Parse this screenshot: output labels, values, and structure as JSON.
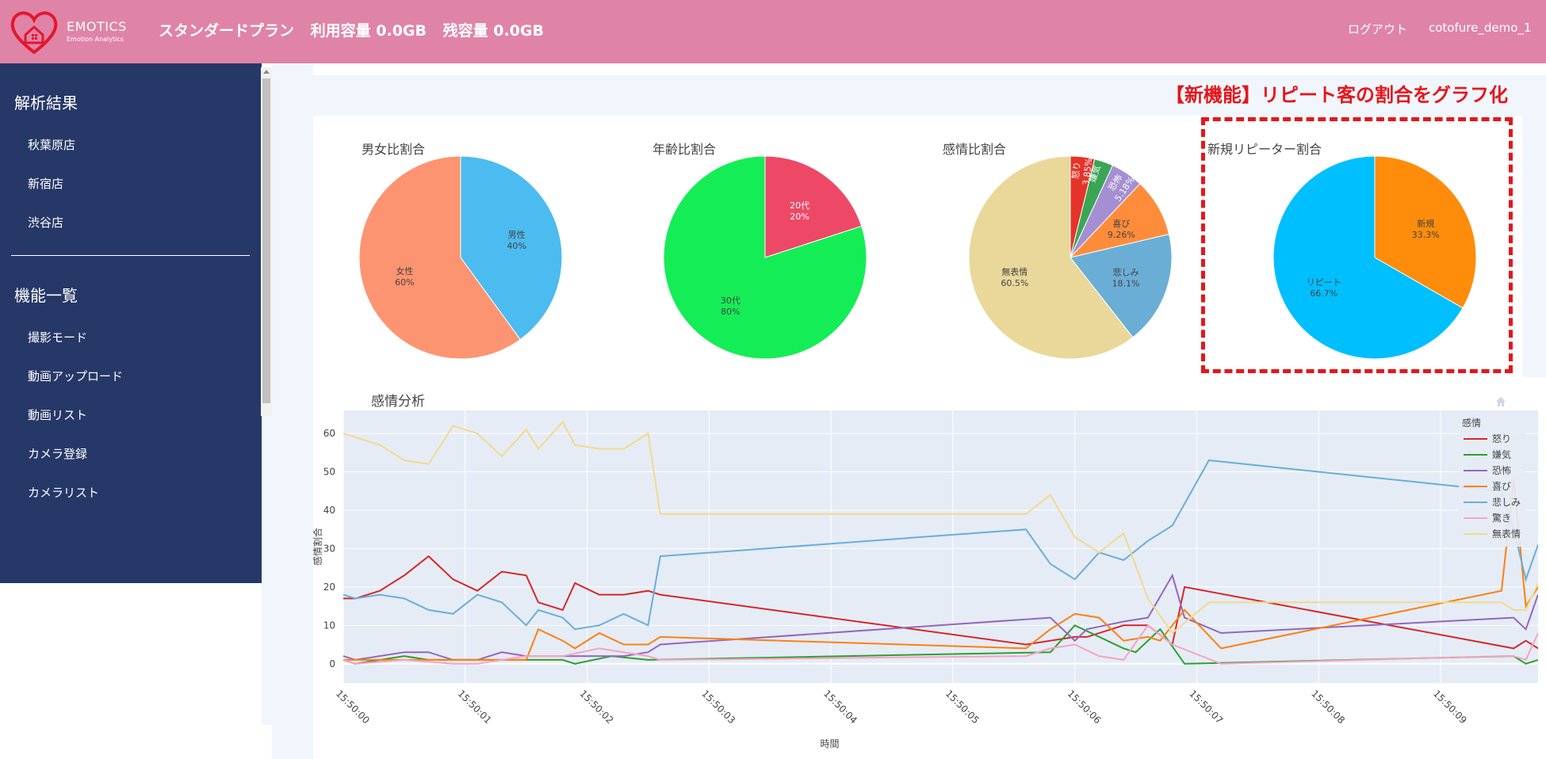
{
  "header": {
    "logo_name": "EMOTICS",
    "logo_sub": "Emotion Analytics",
    "plan_label": "スタンダードプラン",
    "usage_label": "利用容量 0.0GB",
    "remaining_label": "残容量 0.0GB",
    "logout_label": "ログアウト",
    "user_name": "cotofure_demo_1"
  },
  "sidebar": {
    "results_heading": "解析結果",
    "stores": [
      "秋葉原店",
      "新宿店",
      "渋谷店"
    ],
    "features_heading": "機能一覧",
    "features": [
      "撮影モード",
      "動画アップロード",
      "動画リスト",
      "カメラ登録",
      "カメラリスト"
    ]
  },
  "feature_banner": "【新機能】リピート客の割合をグラフ化",
  "pies": [
    {
      "title": "男女比割合",
      "slices": [
        {
          "label": "男性",
          "percent": "40%",
          "value": 40,
          "color": "#4cbbef"
        },
        {
          "label": "女性",
          "percent": "60%",
          "value": 60,
          "color": "#fd9471"
        }
      ]
    },
    {
      "title": "年齢比割合",
      "slices": [
        {
          "label": "20代",
          "percent": "20%",
          "value": 20,
          "color": "#ee4867"
        },
        {
          "label": "30代",
          "percent": "80%",
          "value": 80,
          "color": "#15ed57"
        }
      ]
    },
    {
      "title": "感情比割合",
      "slices": [
        {
          "label": "怒り",
          "percent": "3.85%",
          "value": 3.85,
          "color": "#e6332a"
        },
        {
          "label": "嫌気",
          "percent": "",
          "value": 3.0,
          "color": "#3aa655"
        },
        {
          "label": "恐怖",
          "percent": "5.18%",
          "value": 5.18,
          "color": "#a48fd2"
        },
        {
          "label": "喜び",
          "percent": "9.26%",
          "value": 9.26,
          "color": "#ff8c3b"
        },
        {
          "label": "悲しみ",
          "percent": "18.1%",
          "value": 18.1,
          "color": "#6aaed6"
        },
        {
          "label": "無表情",
          "percent": "60.5%",
          "value": 60.5,
          "color": "#ead89a"
        }
      ]
    },
    {
      "title": "新規リピーター割合",
      "slices": [
        {
          "label": "新規",
          "percent": "33.3%",
          "value": 33.3,
          "color": "#ff8c0a"
        },
        {
          "label": "リピート",
          "percent": "66.7%",
          "value": 66.7,
          "color": "#00bfff"
        }
      ]
    }
  ],
  "chart_data": {
    "type": "line",
    "title": "感情分析",
    "xlabel": "時間",
    "ylabel": "感情割合",
    "ylim": [
      -5,
      66
    ],
    "xlim": [
      0,
      9.8
    ],
    "yticks": [
      0,
      10,
      20,
      30,
      40,
      50,
      60
    ],
    "xticks": [
      "15:50:00",
      "15:50:01",
      "15:50:02",
      "15:50:03",
      "15:50:04",
      "15:50:05",
      "15:50:06",
      "15:50:07",
      "15:50:08",
      "15:50:09"
    ],
    "legend_title": "感情",
    "legend_position": "top-right",
    "grid": true,
    "series": [
      {
        "name": "怒り",
        "color": "#d62728",
        "points": [
          [
            0,
            17
          ],
          [
            0.1,
            17
          ],
          [
            0.3,
            19
          ],
          [
            0.5,
            23
          ],
          [
            0.7,
            28
          ],
          [
            0.9,
            22
          ],
          [
            1.1,
            19
          ],
          [
            1.3,
            24
          ],
          [
            1.5,
            23
          ],
          [
            1.6,
            16
          ],
          [
            1.8,
            14
          ],
          [
            1.9,
            21
          ],
          [
            2.1,
            18
          ],
          [
            2.3,
            18
          ],
          [
            2.5,
            19
          ],
          [
            2.6,
            18
          ],
          [
            5.6,
            5
          ],
          [
            6.0,
            7
          ],
          [
            6.1,
            7
          ],
          [
            6.4,
            10
          ],
          [
            6.6,
            10
          ],
          [
            6.8,
            5
          ],
          [
            6.9,
            20
          ],
          [
            9.6,
            4
          ],
          [
            9.7,
            6
          ],
          [
            9.8,
            4
          ]
        ]
      },
      {
        "name": "嫌気",
        "color": "#2ca02c",
        "points": [
          [
            0,
            1
          ],
          [
            0.1,
            0
          ],
          [
            0.5,
            2
          ],
          [
            0.7,
            1
          ],
          [
            1.6,
            1
          ],
          [
            1.8,
            1
          ],
          [
            1.9,
            0
          ],
          [
            2.2,
            2
          ],
          [
            2.5,
            1
          ],
          [
            5.8,
            3
          ],
          [
            6.0,
            10
          ],
          [
            6.4,
            4
          ],
          [
            6.5,
            3
          ],
          [
            6.7,
            9
          ],
          [
            6.9,
            0
          ],
          [
            9.6,
            2
          ],
          [
            9.7,
            0
          ],
          [
            9.8,
            1
          ]
        ]
      },
      {
        "name": "恐怖",
        "color": "#9467bd",
        "points": [
          [
            0,
            2
          ],
          [
            0.1,
            1
          ],
          [
            0.5,
            3
          ],
          [
            0.7,
            3
          ],
          [
            0.9,
            1
          ],
          [
            1.1,
            1
          ],
          [
            1.3,
            3
          ],
          [
            1.5,
            2
          ],
          [
            2.3,
            2
          ],
          [
            2.5,
            3
          ],
          [
            2.6,
            5
          ],
          [
            5.8,
            12
          ],
          [
            6.0,
            6
          ],
          [
            6.1,
            9
          ],
          [
            6.4,
            11
          ],
          [
            6.6,
            12
          ],
          [
            6.8,
            23
          ],
          [
            6.9,
            12
          ],
          [
            7.2,
            8
          ],
          [
            9.6,
            12
          ],
          [
            9.7,
            9
          ],
          [
            9.8,
            18
          ]
        ]
      },
      {
        "name": "喜び",
        "color": "#ff7f0e",
        "points": [
          [
            0,
            1
          ],
          [
            1.5,
            1
          ],
          [
            1.6,
            9
          ],
          [
            1.8,
            6
          ],
          [
            1.9,
            4
          ],
          [
            2.1,
            8
          ],
          [
            2.3,
            5
          ],
          [
            2.5,
            5
          ],
          [
            2.6,
            7
          ],
          [
            5.6,
            4
          ],
          [
            5.8,
            9
          ],
          [
            6.0,
            13
          ],
          [
            6.2,
            12
          ],
          [
            6.4,
            6
          ],
          [
            6.6,
            7
          ],
          [
            6.7,
            6
          ],
          [
            6.9,
            14
          ],
          [
            7.2,
            4
          ],
          [
            9.5,
            19
          ],
          [
            9.6,
            48
          ],
          [
            9.7,
            15
          ],
          [
            9.8,
            20
          ]
        ]
      },
      {
        "name": "悲しみ",
        "color": "#6baed6",
        "points": [
          [
            0,
            18
          ],
          [
            0.1,
            17
          ],
          [
            0.3,
            18
          ],
          [
            0.5,
            17
          ],
          [
            0.7,
            14
          ],
          [
            0.9,
            13
          ],
          [
            1.1,
            18
          ],
          [
            1.3,
            16
          ],
          [
            1.5,
            10
          ],
          [
            1.6,
            14
          ],
          [
            1.8,
            12
          ],
          [
            1.9,
            9
          ],
          [
            2.1,
            10
          ],
          [
            2.3,
            13
          ],
          [
            2.5,
            10
          ],
          [
            2.6,
            28
          ],
          [
            5.6,
            35
          ],
          [
            5.8,
            26
          ],
          [
            6.0,
            22
          ],
          [
            6.2,
            29
          ],
          [
            6.4,
            27
          ],
          [
            6.6,
            32
          ],
          [
            6.8,
            36
          ],
          [
            7.1,
            53
          ],
          [
            9.5,
            45
          ],
          [
            9.6,
            35
          ],
          [
            9.7,
            22
          ],
          [
            9.8,
            31
          ]
        ]
      },
      {
        "name": "驚き",
        "color": "#f7a3c3",
        "points": [
          [
            0,
            1
          ],
          [
            0.1,
            0
          ],
          [
            0.5,
            1
          ],
          [
            0.9,
            0
          ],
          [
            1.1,
            0
          ],
          [
            1.3,
            1
          ],
          [
            1.5,
            2
          ],
          [
            1.8,
            2
          ],
          [
            2.1,
            4
          ],
          [
            2.3,
            3
          ],
          [
            2.5,
            2
          ],
          [
            2.6,
            1
          ],
          [
            5.6,
            2
          ],
          [
            5.8,
            4
          ],
          [
            6.0,
            5
          ],
          [
            6.2,
            2
          ],
          [
            6.4,
            1
          ],
          [
            6.6,
            10
          ],
          [
            6.8,
            5
          ],
          [
            7.2,
            0
          ],
          [
            9.5,
            2
          ],
          [
            9.6,
            2
          ],
          [
            9.7,
            1
          ],
          [
            9.8,
            8
          ]
        ]
      },
      {
        "name": "無表情",
        "color": "#f1da8a",
        "points": [
          [
            0,
            60
          ],
          [
            0.1,
            59
          ],
          [
            0.3,
            57
          ],
          [
            0.5,
            53
          ],
          [
            0.7,
            52
          ],
          [
            0.9,
            62
          ],
          [
            1.1,
            60
          ],
          [
            1.3,
            54
          ],
          [
            1.5,
            61
          ],
          [
            1.6,
            56
          ],
          [
            1.8,
            63
          ],
          [
            1.9,
            57
          ],
          [
            2.1,
            56
          ],
          [
            2.3,
            56
          ],
          [
            2.5,
            60
          ],
          [
            2.6,
            39
          ],
          [
            5.6,
            39
          ],
          [
            5.8,
            44
          ],
          [
            6.0,
            33
          ],
          [
            6.2,
            29
          ],
          [
            6.4,
            34
          ],
          [
            6.6,
            17
          ],
          [
            6.8,
            8
          ],
          [
            7.1,
            16
          ],
          [
            9.5,
            16
          ],
          [
            9.6,
            14
          ],
          [
            9.7,
            14
          ],
          [
            9.8,
            21
          ]
        ]
      }
    ]
  }
}
